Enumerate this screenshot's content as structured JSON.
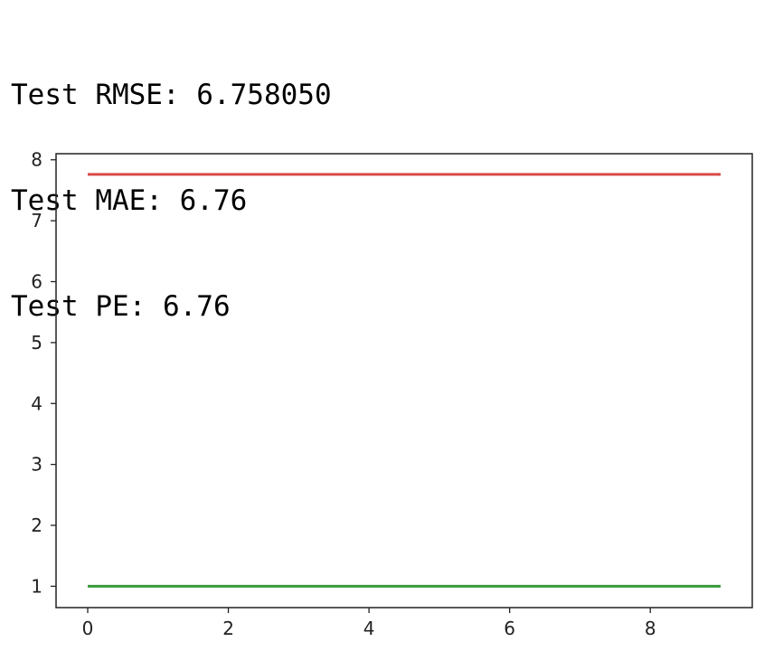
{
  "output": {
    "lines": [
      "Test RMSE: 6.758050",
      "Test MAE: 6.76",
      "Test PE: 6.76"
    ]
  },
  "chart_data": {
    "type": "line",
    "title": "",
    "xlabel": "",
    "ylabel": "",
    "x": [
      0,
      1,
      2,
      3,
      4,
      5,
      6,
      7,
      8,
      9
    ],
    "xlim": [
      -0.45,
      9.45
    ],
    "ylim": [
      0.65,
      8.1
    ],
    "x_ticks": [
      0,
      2,
      4,
      6,
      8
    ],
    "y_ticks": [
      1,
      2,
      3,
      4,
      5,
      6,
      7,
      8
    ],
    "grid": false,
    "legend": "none",
    "series": [
      {
        "values": [
          7.76,
          7.76,
          7.76,
          7.76,
          7.76,
          7.76,
          7.76,
          7.76,
          7.76,
          7.76
        ],
        "color": "#d94a4a"
      },
      {
        "values": [
          1.0,
          1.0,
          1.0,
          1.0,
          1.0,
          1.0,
          1.0,
          1.0,
          1.0,
          1.0
        ],
        "color": "#3a9a3a"
      }
    ]
  }
}
